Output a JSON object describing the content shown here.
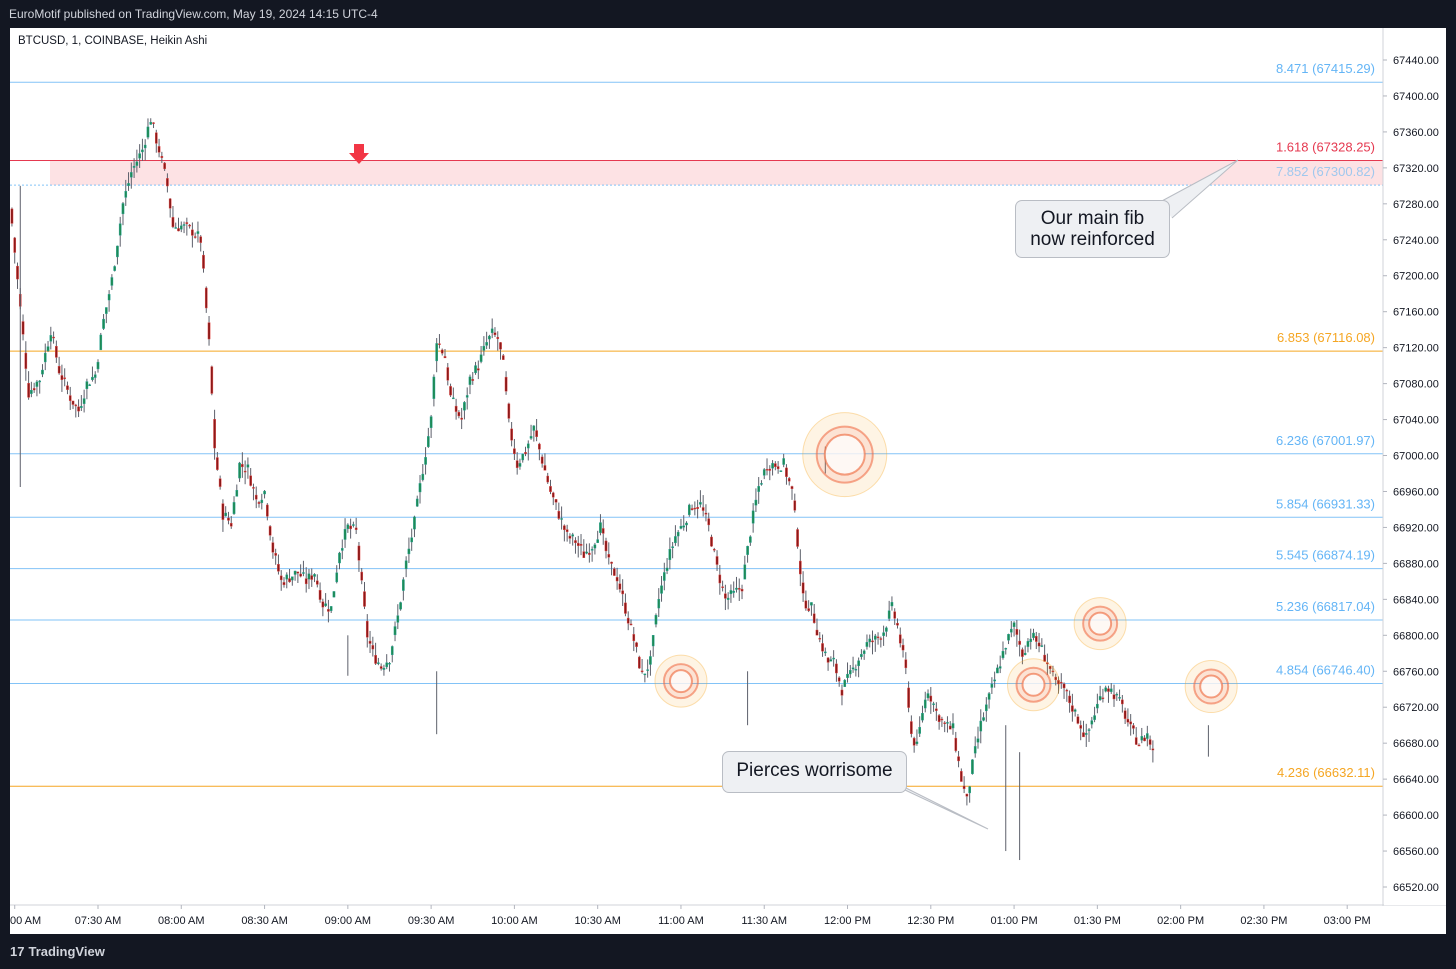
{
  "header": {
    "publisher_line": "EuroMotif published on TradingView.com, May 19, 2024 14:15 UTC-4"
  },
  "symbol_line": "BTCUSD, 1, COINBASE, Heikin Ashi",
  "footer": {
    "logo_text": "TradingView",
    "logo_mark": "17"
  },
  "colors": {
    "up": "#26a69a",
    "up_fill": "#1f8a55",
    "down": "#ef5350",
    "down_fill": "#8b1a1a",
    "fib_blue": "#64b5f6",
    "fib_orange": "#f5a623",
    "fib_red": "#e53950",
    "zone": "#fde2e4",
    "arrow": "#f23645"
  },
  "chart_data": {
    "type": "candlestick",
    "ylim": [
      66490,
      67470
    ],
    "y_ticks": [
      "67440.00",
      "67400.00",
      "67360.00",
      "67320.00",
      "67280.00",
      "67240.00",
      "67200.00",
      "67160.00",
      "67120.00",
      "67080.00",
      "67040.00",
      "67000.00",
      "66960.00",
      "66920.00",
      "66880.00",
      "66840.00",
      "66800.00",
      "66760.00",
      "66720.00",
      "66680.00",
      "66640.00",
      "66600.00",
      "66560.00",
      "66520.00"
    ],
    "x_ticks": [
      {
        "label": "00 AM",
        "t": -30
      },
      {
        "label": "07:30 AM",
        "t": 0
      },
      {
        "label": "08:00 AM",
        "t": 30
      },
      {
        "label": "08:30 AM",
        "t": 60
      },
      {
        "label": "09:00 AM",
        "t": 90
      },
      {
        "label": "09:30 AM",
        "t": 120
      },
      {
        "label": "10:00 AM",
        "t": 150
      },
      {
        "label": "10:30 AM",
        "t": 180
      },
      {
        "label": "11:00 AM",
        "t": 210
      },
      {
        "label": "11:30 AM",
        "t": 240
      },
      {
        "label": "12:00 PM",
        "t": 270
      },
      {
        "label": "12:30 PM",
        "t": 300
      },
      {
        "label": "01:00 PM",
        "t": 330
      },
      {
        "label": "01:30 PM",
        "t": 360
      },
      {
        "label": "02:00 PM",
        "t": 390
      },
      {
        "label": "02:30 PM",
        "t": 420
      },
      {
        "label": "03:00 PM",
        "t": 450
      }
    ],
    "fib_levels": [
      {
        "ratio": "8.471",
        "price": "67415.29",
        "color": "blue"
      },
      {
        "ratio": "1.618",
        "price": "67328.25",
        "color": "red"
      },
      {
        "ratio": "7.852",
        "price": "67300.82",
        "color": "blue"
      },
      {
        "ratio": "6.853",
        "price": "67116.08",
        "color": "orange"
      },
      {
        "ratio": "6.236",
        "price": "67001.97",
        "color": "blue"
      },
      {
        "ratio": "5.854",
        "price": "66931.33",
        "color": "blue"
      },
      {
        "ratio": "5.545",
        "price": "66874.19",
        "color": "blue"
      },
      {
        "ratio": "5.236",
        "price": "66817.04",
        "color": "blue"
      },
      {
        "ratio": "4.854",
        "price": "66746.40",
        "color": "blue"
      },
      {
        "ratio": "4.236",
        "price": "66632.11",
        "color": "orange"
      }
    ],
    "zone": {
      "from": 67300.82,
      "to": 67328.25
    },
    "price_path": [
      [
        -32,
        67290
      ],
      [
        -29,
        67195
      ],
      [
        -25,
        67070
      ],
      [
        -21,
        67085
      ],
      [
        -17,
        67140
      ],
      [
        -14,
        67095
      ],
      [
        -10,
        67065
      ],
      [
        -7,
        67050
      ],
      [
        -4,
        67080
      ],
      [
        -1,
        67090
      ],
      [
        2,
        67150
      ],
      [
        5,
        67195
      ],
      [
        9,
        67280
      ],
      [
        12,
        67315
      ],
      [
        16,
        67340
      ],
      [
        19,
        67375
      ],
      [
        22,
        67340
      ],
      [
        25,
        67300
      ],
      [
        27,
        67255
      ],
      [
        30,
        67255
      ],
      [
        34,
        67250
      ],
      [
        37,
        67240
      ],
      [
        40,
        67125
      ],
      [
        42,
        67010
      ],
      [
        45,
        66935
      ],
      [
        48,
        66925
      ],
      [
        51,
        66990
      ],
      [
        54,
        66985
      ],
      [
        57,
        66950
      ],
      [
        60,
        66960
      ],
      [
        63,
        66895
      ],
      [
        66,
        66860
      ],
      [
        69,
        66865
      ],
      [
        72,
        66870
      ],
      [
        75,
        66860
      ],
      [
        78,
        66870
      ],
      [
        81,
        66835
      ],
      [
        84,
        66830
      ],
      [
        87,
        66895
      ],
      [
        90,
        66920
      ],
      [
        93,
        66915
      ],
      [
        95,
        66855
      ],
      [
        97,
        66800
      ],
      [
        99,
        66780
      ],
      [
        102,
        66765
      ],
      [
        105,
        66775
      ],
      [
        108,
        66820
      ],
      [
        111,
        66880
      ],
      [
        114,
        66925
      ],
      [
        117,
        66985
      ],
      [
        120,
        67040
      ],
      [
        122,
        67130
      ],
      [
        125,
        67110
      ],
      [
        127,
        67065
      ],
      [
        129,
        67050
      ],
      [
        131,
        67040
      ],
      [
        134,
        67085
      ],
      [
        137,
        67100
      ],
      [
        140,
        67125
      ],
      [
        142,
        67135
      ],
      [
        144,
        67130
      ],
      [
        146,
        67100
      ],
      [
        148,
        67035
      ],
      [
        151,
        66990
      ],
      [
        154,
        67005
      ],
      [
        157,
        67030
      ],
      [
        160,
        66995
      ],
      [
        163,
        66960
      ],
      [
        166,
        66935
      ],
      [
        169,
        66910
      ],
      [
        172,
        66905
      ],
      [
        175,
        66890
      ],
      [
        178,
        66900
      ],
      [
        181,
        66920
      ],
      [
        184,
        66880
      ],
      [
        187,
        66865
      ],
      [
        190,
        66830
      ],
      [
        193,
        66795
      ],
      [
        196,
        66755
      ],
      [
        199,
        66770
      ],
      [
        202,
        66840
      ],
      [
        205,
        66880
      ],
      [
        208,
        66910
      ],
      [
        211,
        66925
      ],
      [
        214,
        66945
      ],
      [
        217,
        66945
      ],
      [
        220,
        66920
      ],
      [
        223,
        66875
      ],
      [
        226,
        66840
      ],
      [
        229,
        66845
      ],
      [
        232,
        66855
      ],
      [
        235,
        66915
      ],
      [
        238,
        66965
      ],
      [
        241,
        66990
      ],
      [
        244,
        66990
      ],
      [
        247,
        66990
      ],
      [
        250,
        66960
      ],
      [
        252,
        66905
      ],
      [
        254,
        66840
      ],
      [
        257,
        66830
      ],
      [
        260,
        66795
      ],
      [
        263,
        66770
      ],
      [
        265,
        66770
      ],
      [
        268,
        66740
      ],
      [
        271,
        66755
      ],
      [
        274,
        66775
      ],
      [
        277,
        66790
      ],
      [
        280,
        66795
      ],
      [
        283,
        66805
      ],
      [
        286,
        66830
      ],
      [
        288,
        66810
      ],
      [
        291,
        66760
      ],
      [
        293,
        66690
      ],
      [
        295,
        66675
      ],
      [
        297,
        66715
      ],
      [
        299,
        66740
      ],
      [
        302,
        66715
      ],
      [
        305,
        66700
      ],
      [
        308,
        66695
      ],
      [
        311,
        66640
      ],
      [
        313,
        66615
      ],
      [
        315,
        66655
      ],
      [
        318,
        66700
      ],
      [
        321,
        66730
      ],
      [
        324,
        66760
      ],
      [
        327,
        66790
      ],
      [
        330,
        66810
      ],
      [
        333,
        66780
      ],
      [
        336,
        66800
      ],
      [
        339,
        66790
      ],
      [
        342,
        66770
      ],
      [
        345,
        66745
      ],
      [
        348,
        66740
      ],
      [
        351,
        66720
      ],
      [
        354,
        66700
      ],
      [
        356,
        66685
      ],
      [
        358,
        66705
      ],
      [
        361,
        66730
      ],
      [
        363,
        66745
      ],
      [
        366,
        66735
      ],
      [
        369,
        66720
      ],
      [
        372,
        66695
      ],
      [
        375,
        66680
      ],
      [
        378,
        66690
      ],
      [
        380,
        66670
      ]
    ]
  },
  "callouts": {
    "main_fib_line1": "Our main fib",
    "main_fib_line2": "now reinforced",
    "pierces": "Pierces worrisome"
  },
  "highlights": [
    {
      "t": 210,
      "price": 66749,
      "size": "small"
    },
    {
      "t": 269,
      "price": 67001,
      "size": "large"
    },
    {
      "t": 337,
      "price": 66745,
      "size": "small"
    },
    {
      "t": 361,
      "price": 66813,
      "size": "small"
    },
    {
      "t": 401,
      "price": 66743,
      "size": "small"
    }
  ],
  "arrow": {
    "t": 99,
    "price": 67340
  }
}
